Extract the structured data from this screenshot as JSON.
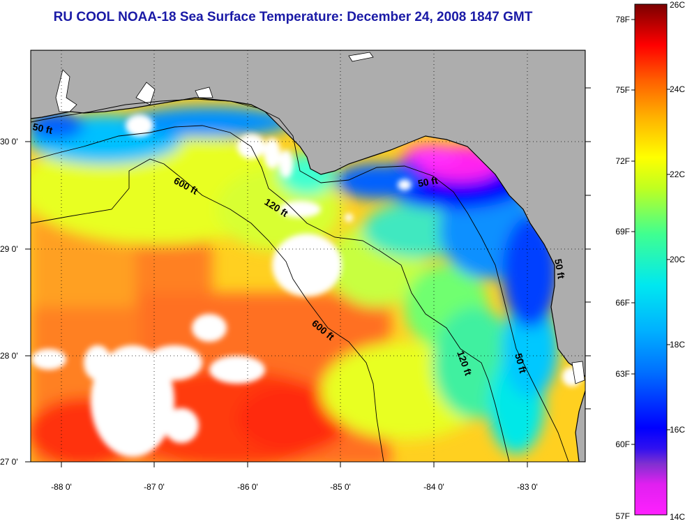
{
  "title": "RU COOL  NOAA-18  Sea Surface Temperature:  December 24, 2008 1847 GMT",
  "lon_ticks": [
    "-88 0'",
    "-87 0'",
    "-86 0'",
    "-85 0'",
    "-84 0'",
    "-83 0'"
  ],
  "lat_ticks": [
    "30 0'",
    "29 0'",
    "28 0'",
    "27 0'"
  ],
  "contours": {
    "label_50ft_west": "50 ft",
    "label_600ft_upper": "600 ft",
    "label_120ft_upper": "120 ft",
    "label_50ft_east": "50 ft",
    "label_600ft_lower": "600 ft",
    "label_120ft_lower": "120 ft",
    "label_50ft_coast": "50 ft",
    "label_50ft_edge": "50 ft"
  },
  "colorbar": {
    "fahrenheit": [
      "78F",
      "75F",
      "72F",
      "69F",
      "66F",
      "63F",
      "60F",
      "57F"
    ],
    "celsius": [
      "26C",
      "24C",
      "22C",
      "20C",
      "18C",
      "16C",
      "14C"
    ],
    "range_c": [
      14,
      26
    ],
    "colors": [
      "#ff00ff",
      "#d000f0",
      "#6a1fd0",
      "#0000ff",
      "#0a6cff",
      "#00c0ff",
      "#00f0e8",
      "#40ff90",
      "#c8ff20",
      "#ffff00",
      "#ffb000",
      "#ff6000",
      "#ff0000",
      "#8b0000"
    ]
  },
  "colors": {
    "land": "#adadad",
    "cloud": "#ffffff",
    "title": "#1a1aa6"
  }
}
